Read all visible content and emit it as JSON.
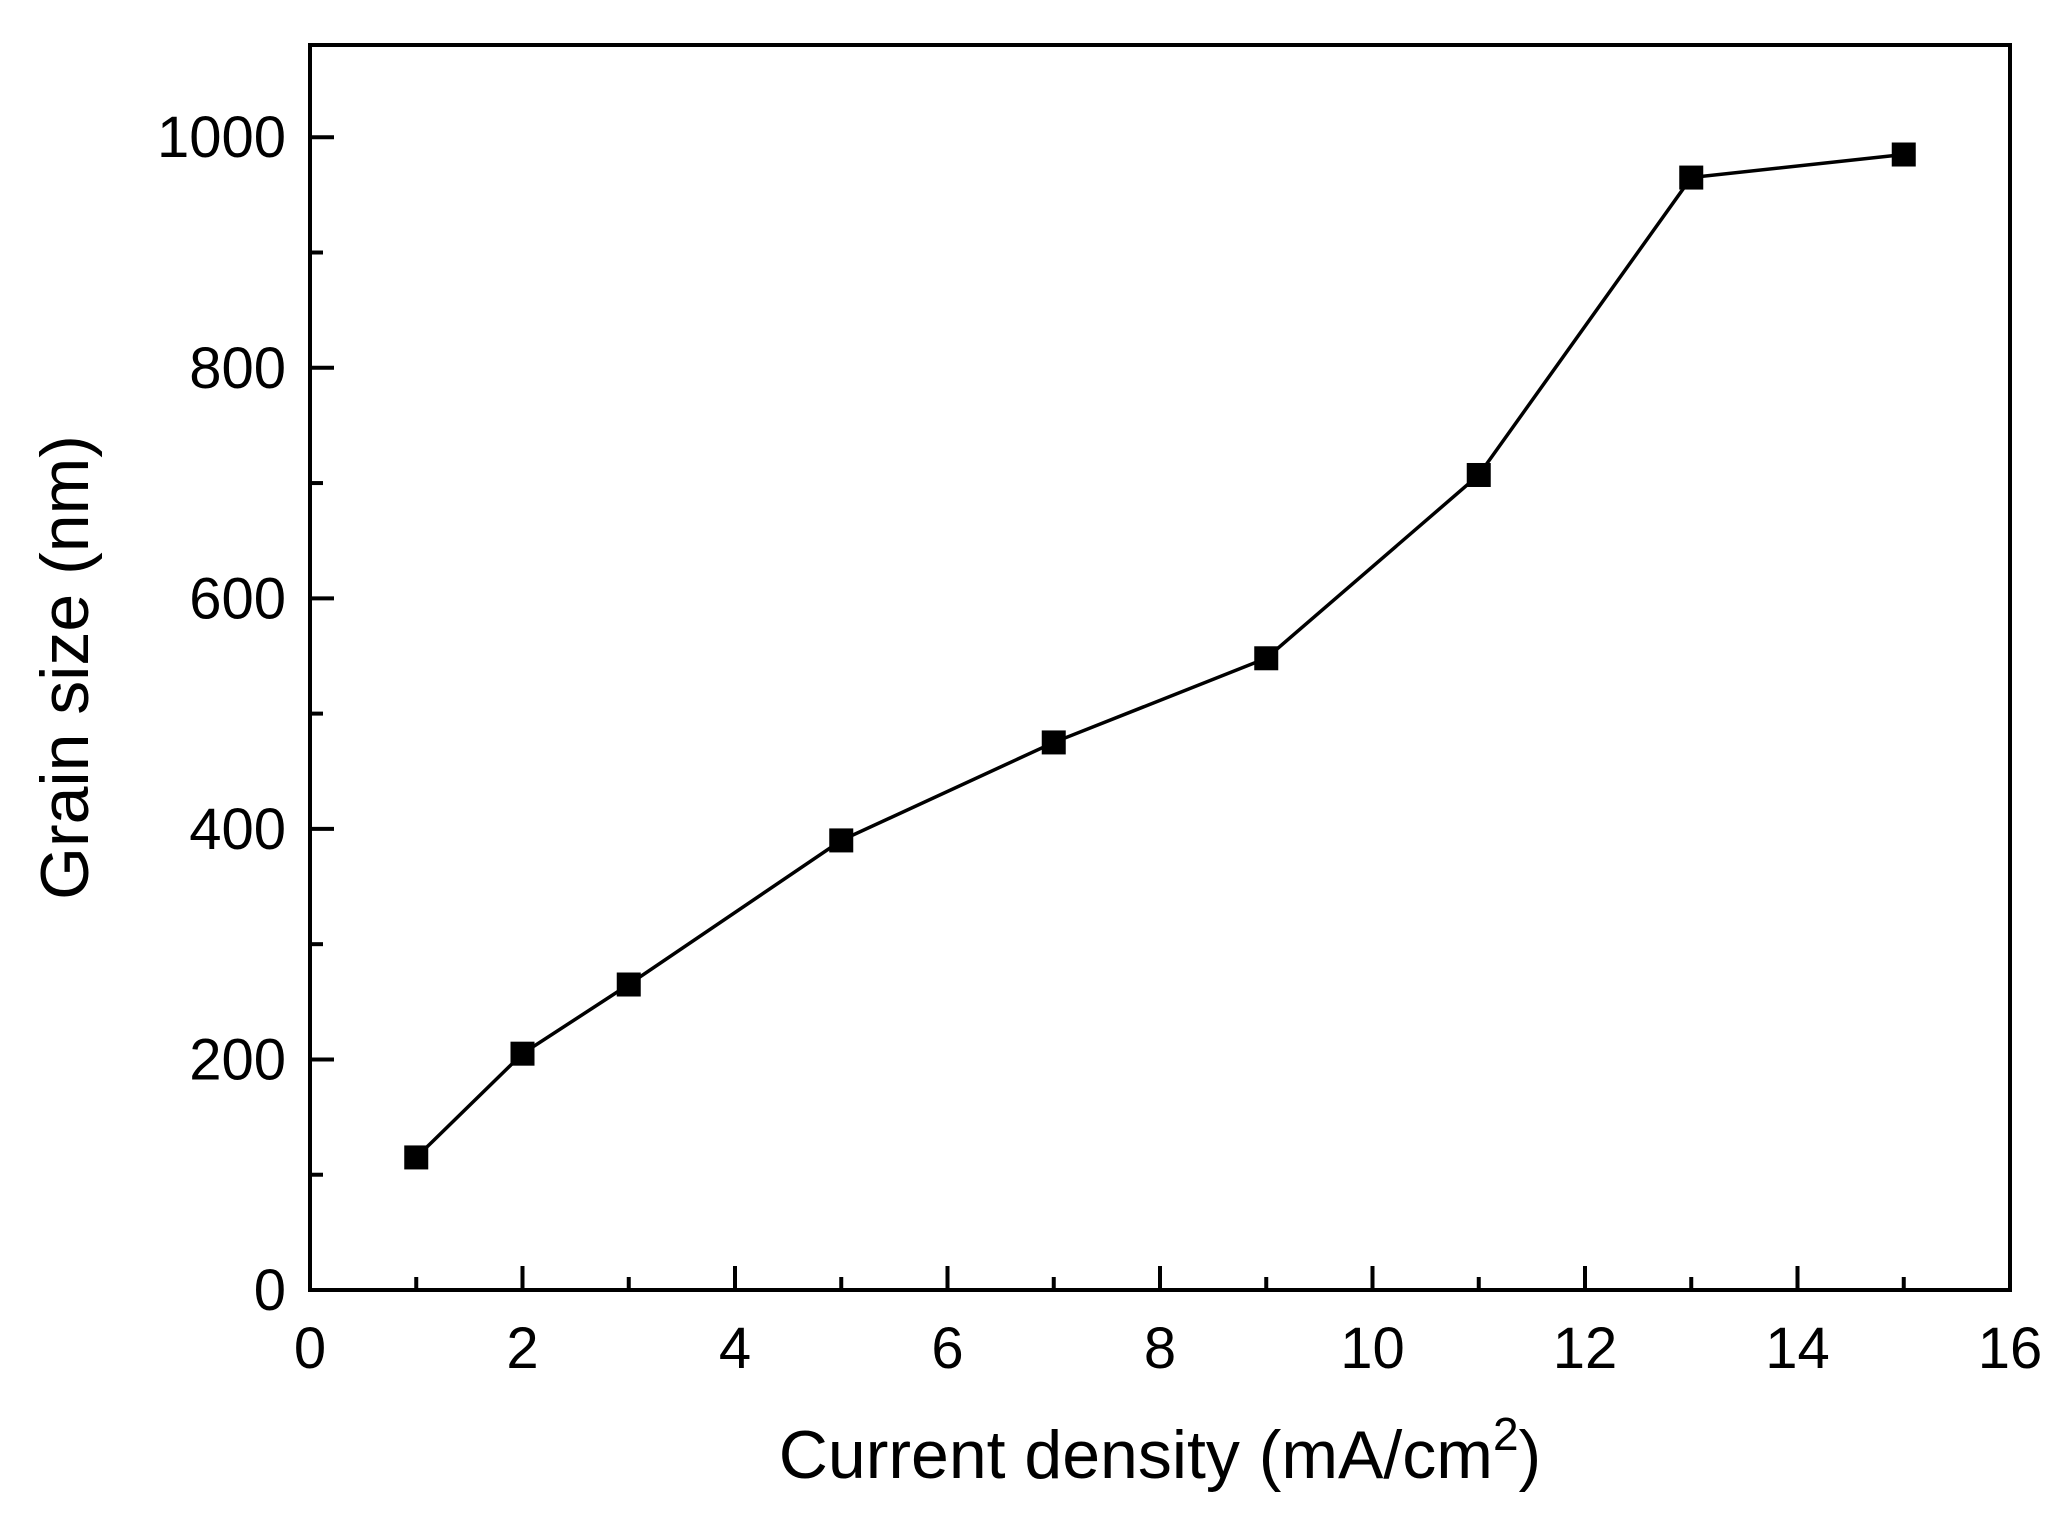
{
  "figure": {
    "background": "#ffffff",
    "line_color": "#000000",
    "marker_color": "#000000",
    "axis_color": "#000000"
  },
  "chart_data": {
    "type": "line",
    "title": "",
    "xlabel": "Current density (mA/cm²)",
    "xlabel_parts": [
      {
        "text": "Current density (mA/cm",
        "sup": false
      },
      {
        "text": "2",
        "sup": true
      },
      {
        "text": ")",
        "sup": false
      }
    ],
    "ylabel": "Grain size (nm)",
    "xlim": [
      0,
      16
    ],
    "ylim": [
      0,
      1080
    ],
    "xticks": [
      0,
      2,
      4,
      6,
      8,
      10,
      12,
      14,
      16
    ],
    "yticks": [
      0,
      200,
      400,
      600,
      800,
      1000
    ],
    "xminor": [
      1,
      3,
      5,
      7,
      9,
      11,
      13,
      15
    ],
    "yminor": [
      100,
      300,
      500,
      700,
      900
    ],
    "grid": false,
    "legend": "none",
    "series": [
      {
        "name": "Grain size",
        "marker": "square",
        "color": "#000000",
        "x": [
          1,
          2,
          3,
          5,
          7,
          9,
          11,
          13,
          15
        ],
        "y": [
          115,
          205,
          265,
          390,
          475,
          548,
          707,
          965,
          985
        ]
      }
    ]
  }
}
